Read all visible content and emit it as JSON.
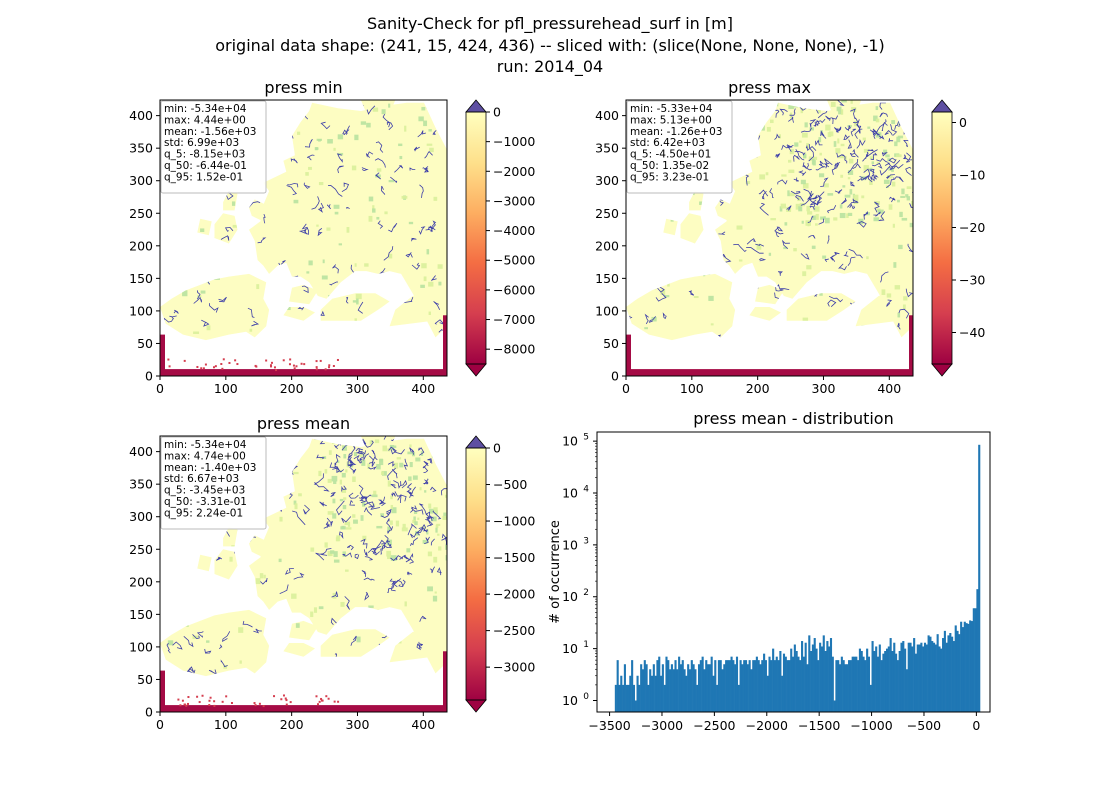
{
  "figure": {
    "suptitle_lines": [
      "Sanity-Check for pfl_pressurehead_surf in [m]",
      "original data shape: (241, 15, 424, 436) -- sliced with: (slice(None, None, None), -1)",
      "run: 2014_04"
    ]
  },
  "chart_data": [
    {
      "type": "heatmap",
      "title": "press min",
      "xlim": [
        0,
        436
      ],
      "ylim": [
        0,
        424
      ],
      "xticks": [
        0,
        100,
        200,
        300,
        400
      ],
      "yticks": [
        0,
        50,
        100,
        150,
        200,
        250,
        300,
        350,
        400
      ],
      "colorbar": {
        "min": -8500,
        "max": 0,
        "ticks": [
          0,
          -1000,
          -2000,
          -3000,
          -4000,
          -5000,
          -6000,
          -7000,
          -8000
        ],
        "tick_labels": [
          "0",
          "−1000",
          "−2000",
          "−3000",
          "−4000",
          "−5000",
          "−6000",
          "−7000",
          "−8000"
        ],
        "extend": "both",
        "colormap": "Spectral"
      },
      "stats": [
        "min: -5.34e+04",
        "max: 4.44e+00",
        "mean: -1.56e+03",
        "std: 6.99e+03",
        "q_5: -8.15e+03",
        "q_50: -6.44e-01",
        "q_95: 1.52e-01"
      ],
      "detail": 0.55
    },
    {
      "type": "heatmap",
      "title": "press max",
      "xlim": [
        0,
        436
      ],
      "ylim": [
        0,
        424
      ],
      "xticks": [
        0,
        100,
        200,
        300,
        400
      ],
      "yticks": [
        0,
        50,
        100,
        150,
        200,
        250,
        300,
        350,
        400
      ],
      "colorbar": {
        "min": -46,
        "max": 2,
        "ticks": [
          0,
          -10,
          -20,
          -30,
          -40
        ],
        "tick_labels": [
          "0",
          "−10",
          "−20",
          "−30",
          "−40"
        ],
        "extend": "both",
        "colormap": "Spectral"
      },
      "stats": [
        "min: -5.33e+04",
        "max: 5.13e+00",
        "mean: -1.26e+03",
        "std: 6.42e+03",
        "q_5: -4.50e+01",
        "q_50: 1.35e-02",
        "q_95: 3.23e-01"
      ],
      "detail": 1.0
    },
    {
      "type": "heatmap",
      "title": "press mean",
      "xlim": [
        0,
        436
      ],
      "ylim": [
        0,
        424
      ],
      "xticks": [
        0,
        100,
        200,
        300,
        400
      ],
      "yticks": [
        0,
        50,
        100,
        150,
        200,
        250,
        300,
        350,
        400
      ],
      "colorbar": {
        "min": -3450,
        "max": 0,
        "ticks": [
          0,
          -500,
          -1000,
          -1500,
          -2000,
          -2500,
          -3000
        ],
        "tick_labels": [
          "0",
          "−500",
          "−1000",
          "−1500",
          "−2000",
          "−2500",
          "−3000"
        ],
        "extend": "both",
        "colormap": "Spectral"
      },
      "stats": [
        "min: -5.34e+04",
        "max: 4.74e+00",
        "mean: -1.40e+03",
        "std: 6.67e+03",
        "q_5: -3.45e+03",
        "q_50: -3.31e-01",
        "q_95: 2.24e-01"
      ],
      "detail": 0.85
    },
    {
      "type": "bar",
      "title": "press mean - distribution",
      "ylabel": "# of occurrence",
      "xlabel": "",
      "yscale": "log",
      "xlim": [
        -3620,
        130
      ],
      "ylim": [
        0.6,
        150000
      ],
      "xticks": [
        -3500,
        -3000,
        -2500,
        -2000,
        -1500,
        -1000,
        -500,
        0
      ],
      "xtick_labels": [
        "−3500",
        "−3000",
        "−2500",
        "−2000",
        "−1500",
        "−1000",
        "−500",
        "0"
      ],
      "yticks": [
        1,
        10,
        100,
        1000,
        10000,
        100000
      ],
      "ytick_labels": [
        "10^0",
        "10^1",
        "10^2",
        "10^3",
        "10^4",
        "10^5"
      ],
      "bar_color": "#1f77b4",
      "bin_start": -3450,
      "bin_width": 17.25,
      "values": [
        2,
        6,
        2,
        3,
        2,
        5,
        2,
        2,
        3,
        6,
        2,
        1,
        3,
        2,
        5,
        4,
        6,
        5,
        2,
        4,
        3,
        5,
        3,
        6,
        7,
        3,
        5,
        2,
        7,
        6,
        4,
        5,
        4,
        6,
        4,
        7,
        5,
        6,
        4,
        3,
        5,
        4,
        6,
        5,
        4,
        2,
        5,
        6,
        7,
        4,
        6,
        5,
        5,
        7,
        3,
        6,
        2,
        6,
        6,
        4,
        5,
        6,
        6,
        6,
        7,
        6,
        5,
        7,
        2,
        6,
        5,
        6,
        6,
        5,
        6,
        4,
        6,
        6,
        7,
        6,
        5,
        6,
        8,
        6,
        3,
        7,
        6,
        10,
        6,
        7,
        6,
        9,
        3,
        8,
        7,
        6,
        6,
        10,
        7,
        12,
        9,
        7,
        6,
        14,
        7,
        13,
        5,
        18,
        9,
        12,
        16,
        10,
        6,
        13,
        11,
        18,
        9,
        14,
        11,
        16,
        7,
        1,
        6,
        6,
        5,
        7,
        6,
        5,
        5,
        6,
        6,
        7,
        7,
        7,
        6,
        10,
        9,
        7,
        6,
        10,
        7,
        2,
        14,
        9,
        11,
        7,
        12,
        6,
        8,
        9,
        10,
        11,
        16,
        9,
        13,
        8,
        6,
        9,
        13,
        14,
        10,
        4,
        13,
        13,
        11,
        16,
        8,
        12,
        12,
        13,
        11,
        13,
        12,
        18,
        17,
        14,
        13,
        12,
        19,
        11,
        10,
        16,
        22,
        13,
        18,
        20,
        17,
        14,
        28,
        22,
        19,
        33,
        26,
        33,
        31,
        30,
        35,
        34,
        60,
        60,
        140,
        85000
      ],
      "colormap_stops": [
        "#9e0142",
        "#d53e4f",
        "#f46d43",
        "#fdae61",
        "#fee08b",
        "#ffffbf",
        "#e6f598",
        "#abdda4",
        "#66c2a5",
        "#3288bd",
        "#5e4fa2"
      ]
    }
  ]
}
